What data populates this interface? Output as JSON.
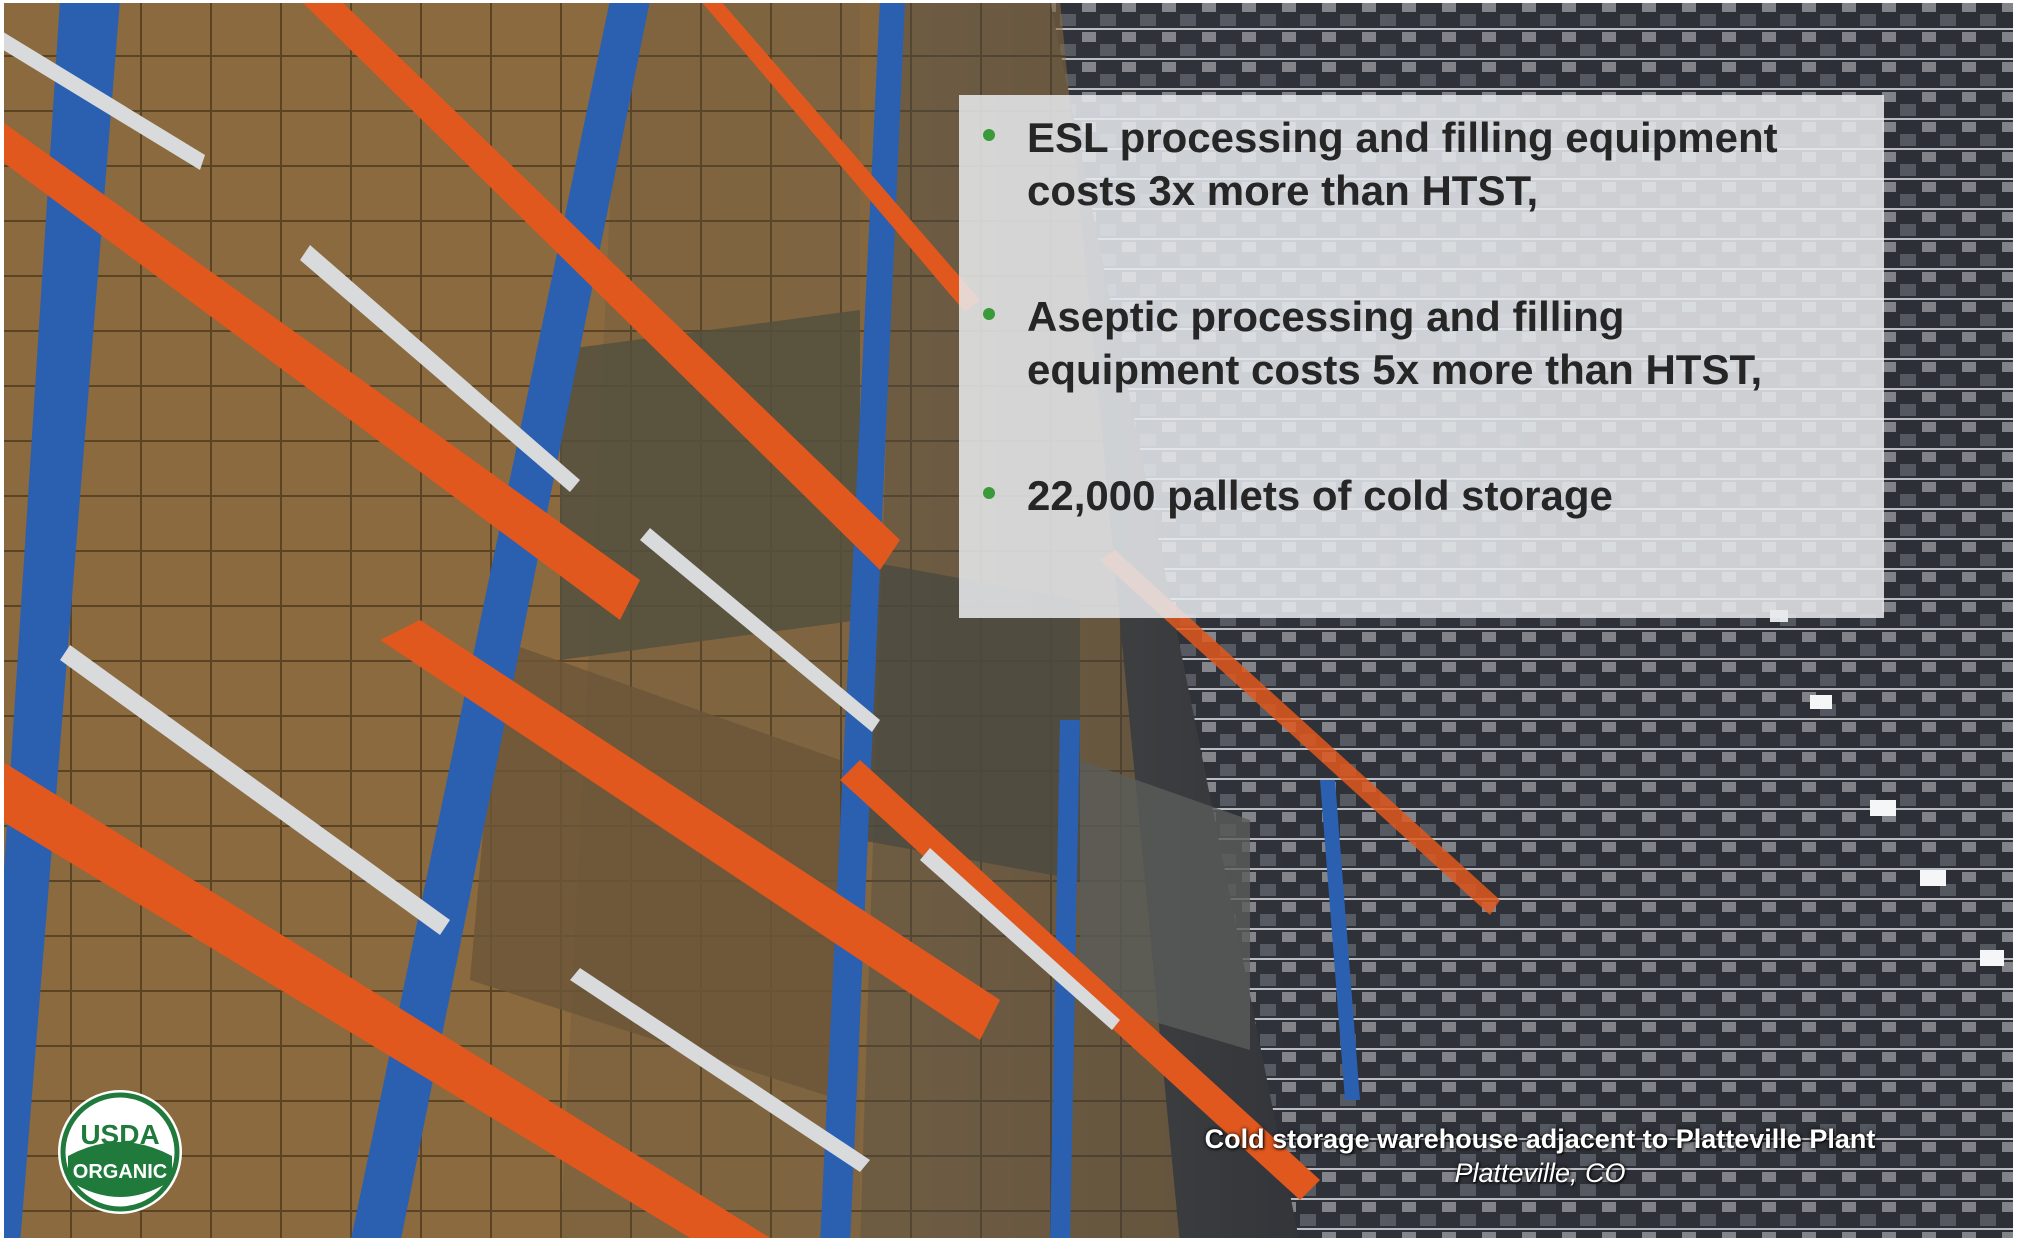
{
  "colors": {
    "bullet_dot": "#3a9a3a",
    "text_dark": "#262626",
    "rack_orange": "#e0581e",
    "rack_blue": "#2b5fb0",
    "seal_green": "#1f7a3c"
  },
  "bullets": [
    {
      "line1": "ESL processing and filling equipment",
      "line2": "costs 3x more than HTST,"
    },
    {
      "line1": "Aseptic processing and filling",
      "line2": "equipment costs 5x more than HTST,"
    },
    {
      "line1": "22,000 pallets of cold storage",
      "line2": ""
    }
  ],
  "caption": {
    "title": "Cold storage warehouse adjacent to Platteville Plant",
    "location": "Platteville, CO"
  },
  "logo": {
    "top_text": "USDA",
    "bottom_text": "ORGANIC"
  }
}
